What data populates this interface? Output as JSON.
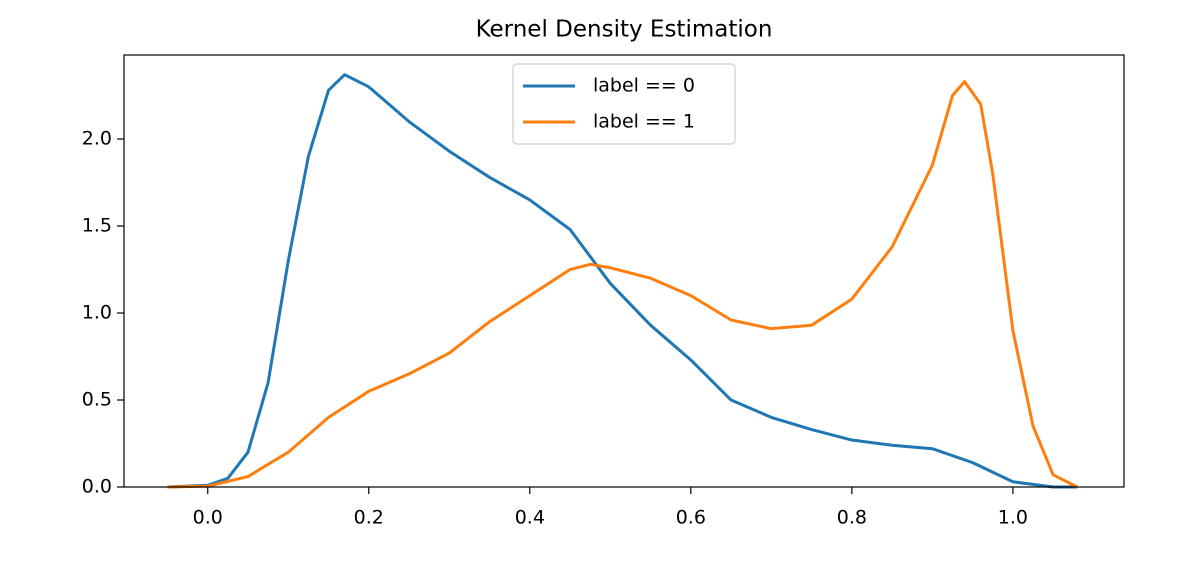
{
  "chart_data": {
    "type": "line",
    "title": "Kernel Density Estimation",
    "legend": "upper center",
    "xlim": [
      -0.104,
      1.138
    ],
    "ylim": [
      0,
      2.483
    ],
    "xticks": [
      {
        "value": 0,
        "label": "0.0"
      },
      0.2,
      0.4,
      0.6,
      0.8,
      {
        "value": 1,
        "label": "1.0"
      }
    ],
    "yticks": [
      {
        "value": 0,
        "label": "0.0"
      },
      0.5,
      {
        "value": 1,
        "label": "1.0"
      },
      1.5,
      {
        "value": 2,
        "label": "2.0"
      }
    ],
    "series": [
      {
        "name": "label == 0",
        "color": "#1f77b4",
        "x": [
          -0.05,
          0.0,
          0.025,
          0.05,
          0.075,
          0.1,
          0.125,
          0.15,
          0.17,
          0.2,
          0.25,
          0.3,
          0.35,
          0.4,
          0.45,
          0.5,
          0.55,
          0.6,
          0.65,
          0.7,
          0.75,
          0.8,
          0.85,
          0.9,
          0.95,
          1.0,
          1.05,
          1.08
        ],
        "values": [
          0.0,
          0.01,
          0.05,
          0.2,
          0.6,
          1.3,
          1.9,
          2.28,
          2.37,
          2.3,
          2.1,
          1.93,
          1.78,
          1.65,
          1.48,
          1.17,
          0.93,
          0.73,
          0.5,
          0.4,
          0.33,
          0.27,
          0.24,
          0.22,
          0.14,
          0.03,
          0.0,
          0.0
        ]
      },
      {
        "name": "label == 1",
        "color": "#ff7f0e",
        "x": [
          -0.05,
          0.0,
          0.05,
          0.1,
          0.15,
          0.2,
          0.25,
          0.3,
          0.35,
          0.4,
          0.45,
          0.475,
          0.5,
          0.55,
          0.6,
          0.65,
          0.7,
          0.75,
          0.8,
          0.85,
          0.9,
          0.925,
          0.94,
          0.96,
          0.975,
          1.0,
          1.025,
          1.05,
          1.08
        ],
        "values": [
          0.0,
          0.005,
          0.06,
          0.2,
          0.4,
          0.55,
          0.65,
          0.77,
          0.95,
          1.1,
          1.25,
          1.28,
          1.26,
          1.2,
          1.1,
          0.96,
          0.91,
          0.93,
          1.08,
          1.38,
          1.85,
          2.25,
          2.33,
          2.2,
          1.8,
          0.9,
          0.35,
          0.07,
          0.0
        ]
      }
    ]
  }
}
